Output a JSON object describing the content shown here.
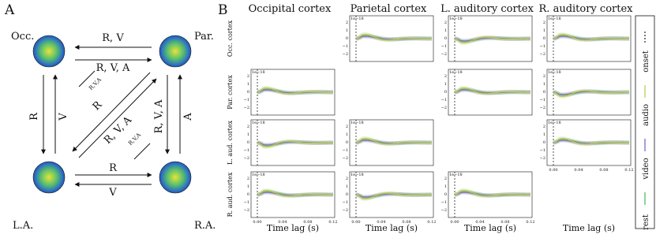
{
  "panel_a": {
    "label": "A",
    "nodes": [
      "Occ.",
      "Par.",
      "L.A.",
      "R.A."
    ],
    "edges": {
      "top_left": "R, V",
      "top_right": "R, V, A",
      "left_down": "R",
      "left_up": "V",
      "right_down": "R, V, A",
      "right_up": "A",
      "bottom_top": "R",
      "bottom_bottom": "V",
      "diag_small_1": "R,V,A",
      "diag_1": "R",
      "diag_2": "R, V, A",
      "diag_small_2": "R,V,A"
    }
  },
  "panel_b": {
    "label": "B",
    "columns": [
      "Occipital cortex",
      "Parietal cortex",
      "L. auditory cortex",
      "R. auditory cortex"
    ],
    "rows": [
      "Occ. cortex",
      "Par. cortex",
      "L. aud. cortex",
      "R. aud. cortex"
    ],
    "scale": "1e−18",
    "yticks": [
      "2",
      "1",
      "0",
      "−1",
      "−2"
    ],
    "xticks": [
      "0.00",
      "0.04",
      "0.08",
      "0.12"
    ],
    "xlabel": "Time lag (s)",
    "legend": [
      {
        "name": "onset",
        "color": "#222"
      },
      {
        "name": "audio",
        "color": "#b9c94a"
      },
      {
        "name": "video",
        "color": "#7a55c8"
      },
      {
        "name": "rest",
        "color": "#3dbb55"
      }
    ]
  }
}
